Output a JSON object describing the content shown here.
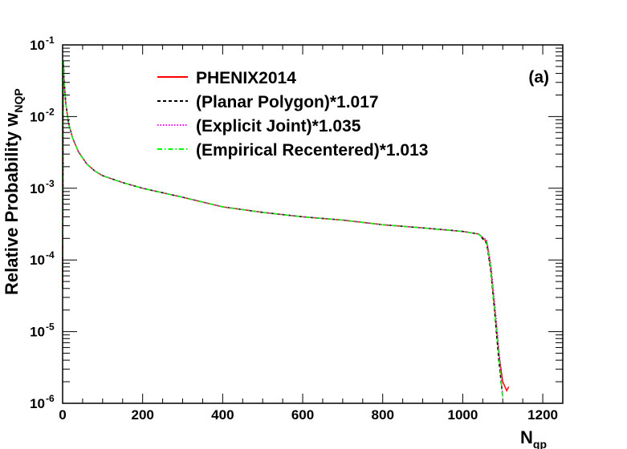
{
  "chart_data": {
    "type": "line",
    "panel_label": "(a)",
    "xlabel": "N",
    "xlabel_sub": "qp",
    "ylabel": "Relative Probability w",
    "ylabel_sub": "NQP",
    "xlim": [
      0,
      1250
    ],
    "ylim": [
      1e-06,
      0.1
    ],
    "yscale": "log",
    "x_ticks": [
      0,
      200,
      400,
      600,
      800,
      1000,
      1200
    ],
    "y_ticks": [
      {
        "value": 1e-06,
        "base": "10",
        "exp": "-6"
      },
      {
        "value": 1e-05,
        "base": "10",
        "exp": "-5"
      },
      {
        "value": 0.0001,
        "base": "10",
        "exp": "-4"
      },
      {
        "value": 0.001,
        "base": "10",
        "exp": "-3"
      },
      {
        "value": 0.01,
        "base": "10",
        "exp": "-2"
      },
      {
        "value": 0.1,
        "base": "10",
        "exp": "-1"
      }
    ],
    "legend_position": "top-center",
    "series": [
      {
        "name": "PHENIX2014",
        "color": "#ff0000",
        "dash": "solid",
        "x": [
          0,
          2,
          4,
          8,
          15,
          25,
          40,
          60,
          80,
          100,
          150,
          200,
          300,
          400,
          500,
          600,
          700,
          800,
          900,
          1000,
          1040,
          1060,
          1070,
          1080,
          1090,
          1100,
          1110,
          1115
        ],
        "y": [
          4e-05,
          0.06,
          0.03,
          0.015,
          0.008,
          0.005,
          0.0032,
          0.0022,
          0.00175,
          0.0015,
          0.0012,
          0.001,
          0.00075,
          0.00055,
          0.00046,
          0.0004,
          0.00036,
          0.00031,
          0.00028,
          0.00025,
          0.00023,
          0.00018,
          8e-05,
          2e-05,
          5e-06,
          2e-06,
          1.5e-06,
          1.7e-06
        ]
      },
      {
        "name": "(Planar Polygon)*1.017",
        "color": "#000000",
        "dash": "dashed",
        "x": [
          0,
          2,
          4,
          8,
          15,
          25,
          40,
          60,
          80,
          100,
          150,
          200,
          300,
          400,
          500,
          600,
          700,
          800,
          900,
          1000,
          1040,
          1060,
          1070,
          1080,
          1090,
          1100
        ],
        "y": [
          4e-05,
          0.06,
          0.03,
          0.015,
          0.008,
          0.005,
          0.0032,
          0.0022,
          0.00175,
          0.0015,
          0.0012,
          0.001,
          0.00075,
          0.00055,
          0.00046,
          0.0004,
          0.00036,
          0.00031,
          0.00028,
          0.00025,
          0.00023,
          0.00017,
          7e-05,
          1.8e-05,
          4e-06,
          1.2e-06
        ]
      },
      {
        "name": "(Explicit Joint)*1.035",
        "color": "#ff00ff",
        "dash": "dotted",
        "x": [
          0,
          2,
          4,
          8,
          15,
          25,
          40,
          60,
          80,
          100,
          150,
          200,
          300,
          400,
          500,
          600,
          700,
          800,
          900,
          1000,
          1040,
          1060,
          1070,
          1080,
          1090,
          1100
        ],
        "y": [
          4e-05,
          0.06,
          0.03,
          0.015,
          0.008,
          0.005,
          0.0032,
          0.0022,
          0.00175,
          0.0015,
          0.0012,
          0.001,
          0.00075,
          0.00055,
          0.00046,
          0.0004,
          0.00036,
          0.00031,
          0.00028,
          0.00025,
          0.00023,
          0.00019,
          9e-05,
          2.5e-05,
          6e-06,
          1.3e-06
        ]
      },
      {
        "name": "(Empirical Recentered)*1.013",
        "color": "#00ff00",
        "dash": "dashdot",
        "x": [
          0,
          2,
          4,
          8,
          15,
          25,
          40,
          60,
          80,
          100,
          150,
          200,
          300,
          400,
          500,
          600,
          700,
          800,
          900,
          1000,
          1040,
          1060,
          1070,
          1080,
          1090,
          1100
        ],
        "y": [
          4e-05,
          0.06,
          0.03,
          0.015,
          0.008,
          0.005,
          0.0032,
          0.0022,
          0.00175,
          0.0015,
          0.0012,
          0.001,
          0.00075,
          0.00055,
          0.00046,
          0.0004,
          0.00036,
          0.00031,
          0.00028,
          0.00025,
          0.00023,
          0.00018,
          8e-05,
          2e-05,
          5e-06,
          1.2e-06
        ]
      }
    ]
  }
}
